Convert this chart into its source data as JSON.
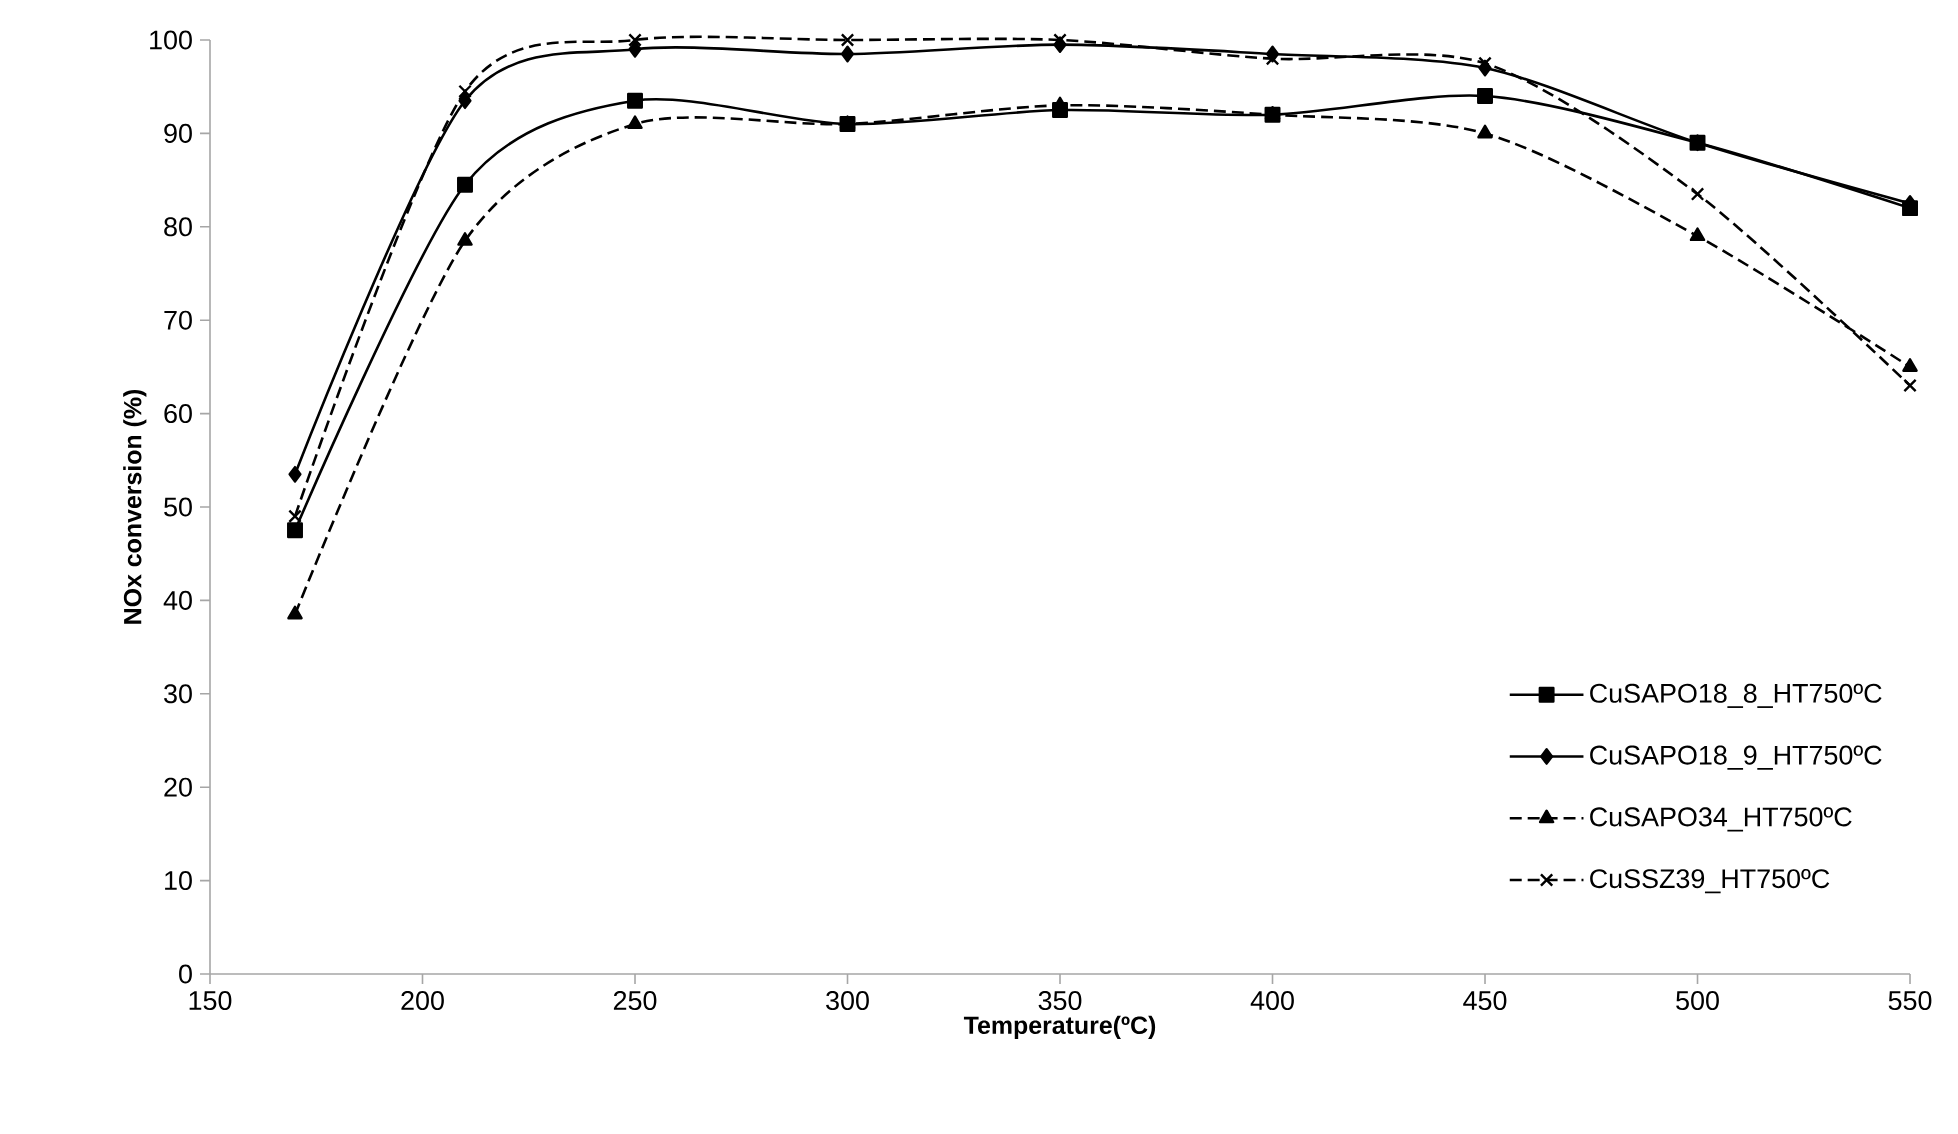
{
  "chart_data": {
    "type": "line",
    "xlabel": "Temperature(ºC)",
    "ylabel": "NOx conversion (%)",
    "x": [
      170,
      210,
      250,
      300,
      350,
      400,
      450,
      500,
      550
    ],
    "xlim": [
      150,
      550
    ],
    "xticks": [
      150,
      200,
      250,
      300,
      350,
      400,
      450,
      500,
      550
    ],
    "ylim": [
      0,
      100
    ],
    "yticks": [
      0,
      10,
      20,
      30,
      40,
      50,
      60,
      70,
      80,
      90,
      100
    ],
    "grid": false,
    "legend": "right",
    "series": [
      {
        "name": "CuSAPO18_8_HT750ºC",
        "color": "#000000",
        "marker": "square",
        "line_style": "solid",
        "values": [
          47.5,
          84.5,
          93.5,
          91,
          92.5,
          92,
          94,
          89,
          82
        ]
      },
      {
        "name": "CuSAPO18_9_HT750ºC",
        "color": "#000000",
        "marker": "diamond",
        "line_style": "solid",
        "values": [
          53.5,
          93.5,
          99,
          98.5,
          99.5,
          98.5,
          97,
          89,
          82.5
        ]
      },
      {
        "name": "CuSAPO34_HT750ºC",
        "color": "#000000",
        "marker": "triangle",
        "line_style": "dashed",
        "values": [
          38.5,
          78.5,
          91,
          91,
          93,
          92,
          90,
          79,
          65
        ]
      },
      {
        "name": "CuSSZ39_HT750ºC",
        "color": "#000000",
        "marker": "cross",
        "line_style": "dashed",
        "values": [
          49,
          94.5,
          100,
          100,
          100,
          98,
          97.5,
          83.5,
          63
        ]
      }
    ]
  }
}
